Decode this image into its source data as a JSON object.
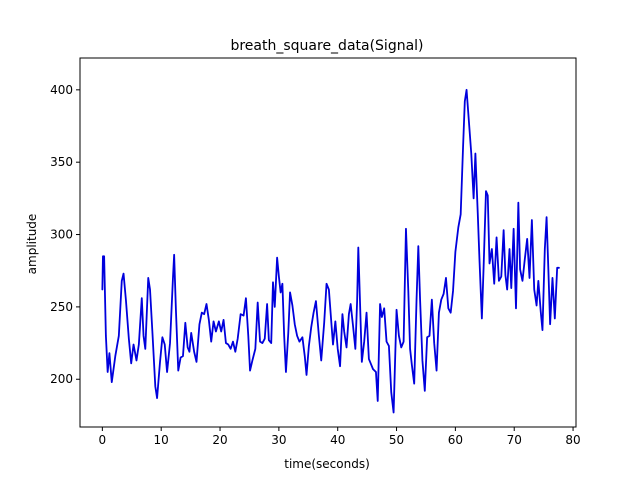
{
  "chart_data": {
    "type": "line",
    "title": "breath_square_data(Signal)",
    "xlabel": "time(seconds)",
    "ylabel": "amplitude",
    "xlim": [
      -3.8,
      80.5
    ],
    "ylim": [
      167,
      422
    ],
    "xticks": [
      0,
      10,
      20,
      30,
      40,
      50,
      60,
      70,
      80
    ],
    "yticks": [
      200,
      250,
      300,
      350,
      400
    ],
    "xtick_labels": [
      "0",
      "10",
      "20",
      "30",
      "40",
      "50",
      "60",
      "70",
      "80"
    ],
    "ytick_labels": [
      "200",
      "250",
      "300",
      "350",
      "400"
    ],
    "grid": false,
    "series": [
      {
        "name": "Signal",
        "color": "#0000dd",
        "points": [
          [
            0,
            262
          ],
          [
            0.1,
            285
          ],
          [
            0.3,
            285
          ],
          [
            0.6,
            230
          ],
          [
            0.9,
            205
          ],
          [
            1.2,
            218
          ],
          [
            1.6,
            198
          ],
          [
            2.2,
            216
          ],
          [
            2.8,
            230
          ],
          [
            3.3,
            268
          ],
          [
            3.6,
            273
          ],
          [
            4.0,
            255
          ],
          [
            4.5,
            228
          ],
          [
            4.9,
            211
          ],
          [
            5.3,
            224
          ],
          [
            5.8,
            213
          ],
          [
            6.2,
            224
          ],
          [
            6.7,
            256
          ],
          [
            7.0,
            230
          ],
          [
            7.3,
            221
          ],
          [
            7.8,
            270
          ],
          [
            8.1,
            262
          ],
          [
            8.5,
            233
          ],
          [
            9.0,
            195
          ],
          [
            9.3,
            187
          ],
          [
            9.8,
            212
          ],
          [
            10.2,
            229
          ],
          [
            10.6,
            224
          ],
          [
            11.0,
            205
          ],
          [
            11.5,
            225
          ],
          [
            12.0,
            270
          ],
          [
            12.2,
            286
          ],
          [
            12.5,
            248
          ],
          [
            12.9,
            206
          ],
          [
            13.3,
            215
          ],
          [
            13.7,
            216
          ],
          [
            14.1,
            239
          ],
          [
            14.5,
            222
          ],
          [
            14.8,
            219
          ],
          [
            15.1,
            232
          ],
          [
            15.6,
            219
          ],
          [
            16.0,
            212
          ],
          [
            16.5,
            238
          ],
          [
            16.9,
            246
          ],
          [
            17.3,
            245
          ],
          [
            17.7,
            252
          ],
          [
            18.1,
            241
          ],
          [
            18.5,
            226
          ],
          [
            18.9,
            240
          ],
          [
            19.3,
            233
          ],
          [
            19.8,
            240
          ],
          [
            20.2,
            233
          ],
          [
            20.6,
            241
          ],
          [
            21.0,
            225
          ],
          [
            21.4,
            224
          ],
          [
            21.8,
            221
          ],
          [
            22.2,
            226
          ],
          [
            22.6,
            219
          ],
          [
            23.0,
            228
          ],
          [
            23.5,
            245
          ],
          [
            24.0,
            244
          ],
          [
            24.4,
            256
          ],
          [
            24.8,
            230
          ],
          [
            25.1,
            206
          ],
          [
            25.5,
            213
          ],
          [
            26.0,
            221
          ],
          [
            26.4,
            253
          ],
          [
            26.8,
            226
          ],
          [
            27.2,
            225
          ],
          [
            27.6,
            228
          ],
          [
            28.0,
            252
          ],
          [
            28.3,
            227
          ],
          [
            28.7,
            225
          ],
          [
            29.0,
            267
          ],
          [
            29.3,
            250
          ],
          [
            29.7,
            284
          ],
          [
            30.0,
            271
          ],
          [
            30.3,
            260
          ],
          [
            30.6,
            266
          ],
          [
            30.9,
            230
          ],
          [
            31.2,
            205
          ],
          [
            31.6,
            232
          ],
          [
            31.9,
            260
          ],
          [
            32.3,
            251
          ],
          [
            32.7,
            238
          ],
          [
            33.1,
            230
          ],
          [
            33.5,
            226
          ],
          [
            34.0,
            229
          ],
          [
            34.4,
            216
          ],
          [
            34.7,
            203
          ],
          [
            35.1,
            223
          ],
          [
            35.5,
            236
          ],
          [
            35.9,
            246
          ],
          [
            36.3,
            254
          ],
          [
            36.8,
            230
          ],
          [
            37.2,
            213
          ],
          [
            37.7,
            239
          ],
          [
            38.1,
            266
          ],
          [
            38.5,
            262
          ],
          [
            38.9,
            240
          ],
          [
            39.2,
            224
          ],
          [
            39.6,
            240
          ],
          [
            40.0,
            221
          ],
          [
            40.4,
            209
          ],
          [
            40.8,
            245
          ],
          [
            41.1,
            233
          ],
          [
            41.5,
            222
          ],
          [
            41.9,
            245
          ],
          [
            42.2,
            252
          ],
          [
            42.6,
            237
          ],
          [
            43.0,
            221
          ],
          [
            43.3,
            254
          ],
          [
            43.5,
            291
          ],
          [
            43.8,
            252
          ],
          [
            44.1,
            212
          ],
          [
            44.5,
            226
          ],
          [
            44.9,
            246
          ],
          [
            45.3,
            214
          ],
          [
            45.6,
            211
          ],
          [
            46.0,
            207
          ],
          [
            46.5,
            205
          ],
          [
            46.8,
            185
          ],
          [
            47.2,
            252
          ],
          [
            47.5,
            243
          ],
          [
            47.9,
            249
          ],
          [
            48.3,
            226
          ],
          [
            48.7,
            223
          ],
          [
            49.1,
            191
          ],
          [
            49.5,
            177
          ],
          [
            50.0,
            248
          ],
          [
            50.4,
            230
          ],
          [
            50.8,
            222
          ],
          [
            51.2,
            226
          ],
          [
            51.6,
            304
          ],
          [
            52.0,
            261
          ],
          [
            52.3,
            221
          ],
          [
            52.6,
            210
          ],
          [
            53.0,
            197
          ],
          [
            53.4,
            255
          ],
          [
            53.7,
            292
          ],
          [
            54.0,
            255
          ],
          [
            54.4,
            213
          ],
          [
            54.8,
            192
          ],
          [
            55.2,
            229
          ],
          [
            55.6,
            230
          ],
          [
            56.0,
            255
          ],
          [
            56.4,
            225
          ],
          [
            56.8,
            206
          ],
          [
            57.2,
            246
          ],
          [
            57.6,
            255
          ],
          [
            58.0,
            259
          ],
          [
            58.4,
            270
          ],
          [
            58.8,
            249
          ],
          [
            59.2,
            246
          ],
          [
            59.6,
            261
          ],
          [
            60.0,
            288
          ],
          [
            60.5,
            305
          ],
          [
            60.9,
            314
          ],
          [
            61.3,
            360
          ],
          [
            61.6,
            392
          ],
          [
            61.9,
            400
          ],
          [
            62.3,
            378
          ],
          [
            62.7,
            356
          ],
          [
            63.1,
            325
          ],
          [
            63.4,
            356
          ],
          [
            63.8,
            315
          ],
          [
            64.1,
            282
          ],
          [
            64.5,
            242
          ],
          [
            64.8,
            278
          ],
          [
            65.2,
            330
          ],
          [
            65.5,
            327
          ],
          [
            65.8,
            280
          ],
          [
            66.2,
            290
          ],
          [
            66.6,
            266
          ],
          [
            67.0,
            298
          ],
          [
            67.4,
            268
          ],
          [
            67.8,
            271
          ],
          [
            68.2,
            303
          ],
          [
            68.5,
            272
          ],
          [
            68.8,
            262
          ],
          [
            69.2,
            290
          ],
          [
            69.5,
            263
          ],
          [
            69.9,
            304
          ],
          [
            70.3,
            249
          ],
          [
            70.7,
            322
          ],
          [
            71.0,
            276
          ],
          [
            71.4,
            268
          ],
          [
            71.8,
            283
          ],
          [
            72.2,
            297
          ],
          [
            72.6,
            270
          ],
          [
            73.0,
            310
          ],
          [
            73.4,
            262
          ],
          [
            73.8,
            251
          ],
          [
            74.1,
            268
          ],
          [
            74.5,
            247
          ],
          [
            74.8,
            234
          ],
          [
            75.2,
            290
          ],
          [
            75.5,
            312
          ],
          [
            75.8,
            276
          ],
          [
            76.1,
            238
          ],
          [
            76.5,
            270
          ],
          [
            76.9,
            242
          ],
          [
            77.3,
            277
          ],
          [
            77.6,
            277
          ]
        ]
      }
    ]
  }
}
